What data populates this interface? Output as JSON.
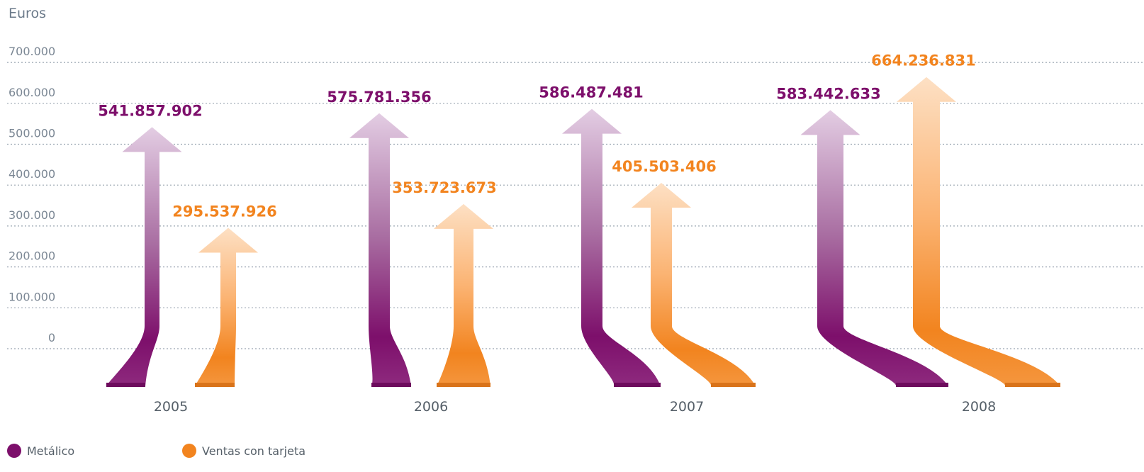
{
  "unit_label": "Euros",
  "colors": {
    "metalico": "#7d0f6b",
    "metalico_light": "#e0c6df",
    "tarjeta": "#f2841f",
    "tarjeta_light": "#fdd8b4"
  },
  "legend": [
    {
      "label": "Metálico",
      "color": "#7d0f6b"
    },
    {
      "label": "Ventas con tarjeta",
      "color": "#f2841f"
    }
  ],
  "chart_data": {
    "type": "bar",
    "title": "",
    "xlabel": "",
    "ylabel": "Euros",
    "ylim": [
      0,
      700000
    ],
    "yticks": [
      "0",
      "100.000",
      "200.000",
      "300.000",
      "400.000",
      "500.000",
      "600.000",
      "700.000"
    ],
    "grid": true,
    "legend_position": "bottom-left",
    "categories": [
      "2005",
      "2006",
      "2007",
      "2008"
    ],
    "series": [
      {
        "name": "Metálico",
        "values": [
          541857902,
          575781356,
          586487481,
          583442633
        ],
        "labels": [
          "541.857.902",
          "575.781.356",
          "586.487.481",
          "583.442.633"
        ]
      },
      {
        "name": "Ventas con tarjeta",
        "values": [
          295537926,
          353723673,
          405503406,
          664236831
        ],
        "labels": [
          "295.537.926",
          "353.723.673",
          "405.503.406",
          "664.236.831"
        ]
      }
    ]
  }
}
